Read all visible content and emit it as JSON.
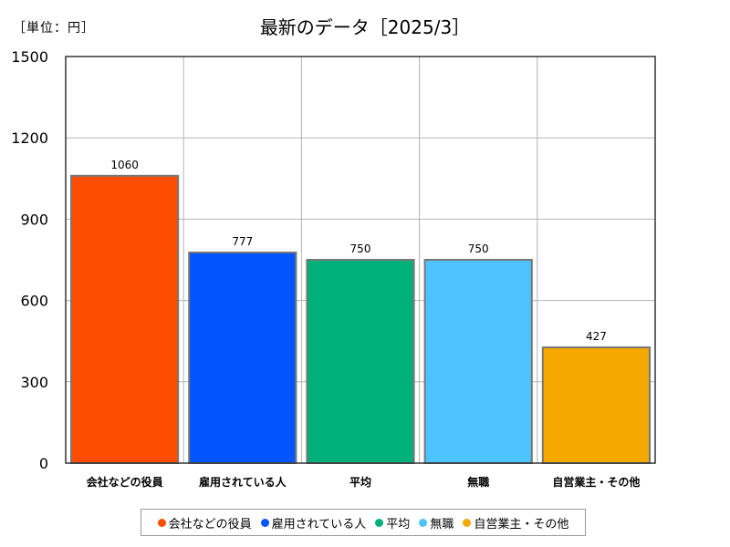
{
  "unit_label": "［単位：円］",
  "chart_data": {
    "type": "bar",
    "title": "最新のデータ［2025/3］",
    "categories": [
      "会社などの役員",
      "雇用されている人",
      "平均",
      "無職",
      "自営業主・その他"
    ],
    "values": [
      1060,
      777,
      750,
      750,
      427
    ],
    "colors": [
      "#ff4d00",
      "#0055ff",
      "#00b07a",
      "#4dc4ff",
      "#f5a800"
    ],
    "ylim": [
      0,
      1500
    ],
    "yticks": [
      0,
      300,
      600,
      900,
      1200,
      1500
    ],
    "grid": true,
    "legend_position": "bottom",
    "xlabel": "",
    "ylabel": ""
  }
}
